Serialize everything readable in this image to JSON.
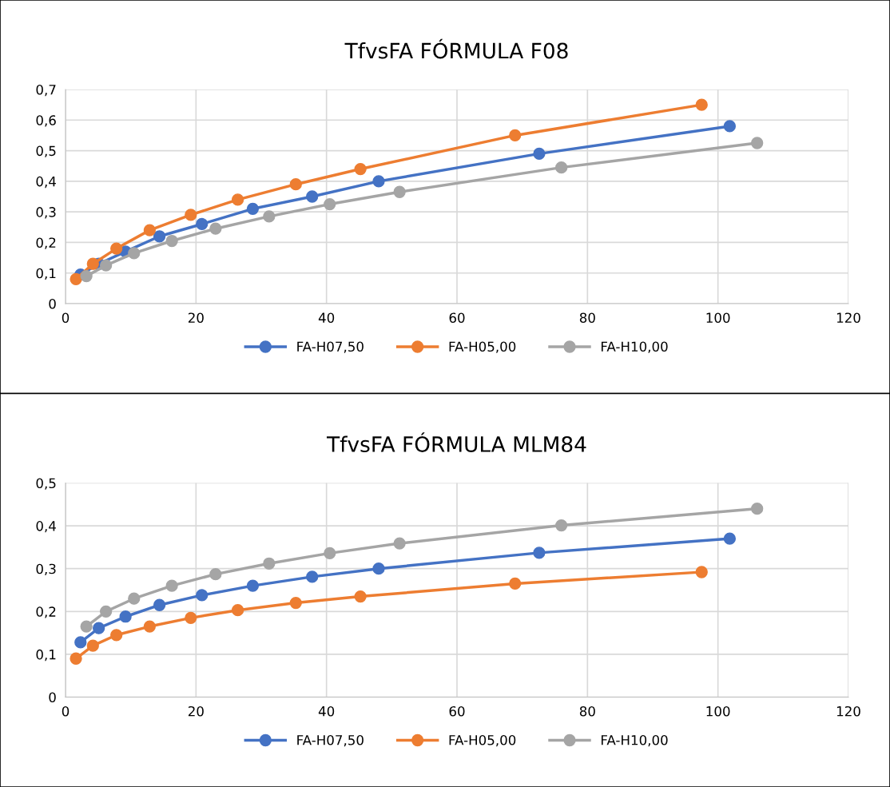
{
  "chart_data": [
    {
      "type": "line",
      "title": "TfvsFA FÓRMULA F08",
      "marker": "circle",
      "grid": true,
      "legend": "bottom",
      "xlim": [
        0,
        120
      ],
      "xticks": [
        0,
        20,
        40,
        60,
        80,
        100,
        120
      ],
      "ylim": [
        0,
        0.7
      ],
      "yticks": [
        0,
        {
          "value": 0.1,
          "label": "0,1"
        },
        {
          "value": 0.2,
          "label": "0,2"
        },
        {
          "value": 0.3,
          "label": "0,3"
        },
        {
          "value": 0.4,
          "label": "0,4"
        },
        {
          "value": 0.5,
          "label": "0,5"
        },
        {
          "value": 0.6,
          "label": "0,6"
        },
        {
          "value": 0.7,
          "label": "0,7"
        }
      ],
      "series": [
        {
          "name": "FA-H07,50",
          "color": "#4472c4",
          "x": [
            2.3,
            5.1,
            9.2,
            14.4,
            20.9,
            28.7,
            37.8,
            48.0,
            72.6,
            101.8
          ],
          "values": [
            0.095,
            0.13,
            0.17,
            0.22,
            0.26,
            0.31,
            0.35,
            0.4,
            0.49,
            0.58
          ]
        },
        {
          "name": "FA-H05,00",
          "color": "#ed7d31",
          "x": [
            1.6,
            4.2,
            7.8,
            12.9,
            19.2,
            26.4,
            35.3,
            45.2,
            68.9,
            97.5
          ],
          "values": [
            0.08,
            0.13,
            0.18,
            0.24,
            0.29,
            0.34,
            0.39,
            0.44,
            0.55,
            0.65
          ]
        },
        {
          "name": "FA-H10,00",
          "color": "#a5a5a5",
          "x": [
            3.2,
            6.2,
            10.5,
            16.3,
            23.0,
            31.2,
            40.5,
            51.2,
            76.0,
            106.0
          ],
          "values": [
            0.09,
            0.125,
            0.165,
            0.205,
            0.245,
            0.285,
            0.325,
            0.365,
            0.445,
            0.525
          ]
        }
      ]
    },
    {
      "type": "line",
      "title": "TfvsFA FÓRMULA MLM84",
      "marker": "circle",
      "grid": true,
      "legend": "bottom",
      "xlim": [
        0,
        120
      ],
      "xticks": [
        0,
        20,
        40,
        60,
        80,
        100,
        120
      ],
      "ylim": [
        0,
        0.5
      ],
      "yticks": [
        0,
        {
          "value": 0.1,
          "label": "0,1"
        },
        {
          "value": 0.2,
          "label": "0,2"
        },
        {
          "value": 0.3,
          "label": "0,3"
        },
        {
          "value": 0.4,
          "label": "0,4"
        },
        {
          "value": 0.5,
          "label": "0,5"
        }
      ],
      "series": [
        {
          "name": "FA-H07,50",
          "color": "#4472c4",
          "x": [
            2.3,
            5.1,
            9.2,
            14.4,
            20.9,
            28.7,
            37.8,
            48.0,
            72.6,
            101.8
          ],
          "values": [
            0.128,
            0.161,
            0.188,
            0.215,
            0.238,
            0.26,
            0.281,
            0.3,
            0.337,
            0.37
          ]
        },
        {
          "name": "FA-H05,00",
          "color": "#ed7d31",
          "x": [
            1.6,
            4.2,
            7.8,
            12.9,
            19.2,
            26.4,
            35.3,
            45.2,
            68.9,
            97.5
          ],
          "values": [
            0.09,
            0.12,
            0.145,
            0.165,
            0.185,
            0.203,
            0.22,
            0.235,
            0.265,
            0.292
          ]
        },
        {
          "name": "FA-H10,00",
          "color": "#a5a5a5",
          "x": [
            3.2,
            6.2,
            10.5,
            16.3,
            23.0,
            31.2,
            40.5,
            51.2,
            76.0,
            106.0
          ],
          "values": [
            0.165,
            0.2,
            0.23,
            0.26,
            0.287,
            0.312,
            0.336,
            0.359,
            0.401,
            0.44
          ]
        }
      ]
    }
  ]
}
